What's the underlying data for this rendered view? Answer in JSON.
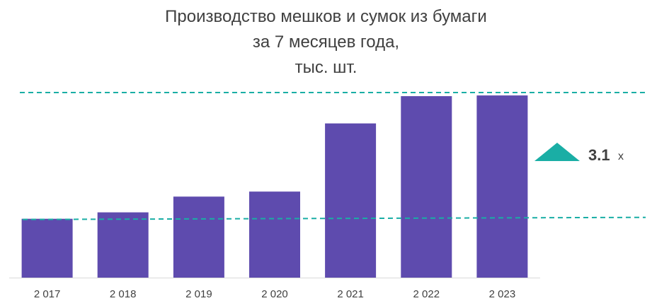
{
  "chart_data": {
    "type": "bar",
    "title_lines": [
      "Производство мешков и сумок из бумаги",
      "за 7 месяцев года,",
      "тыс. шт."
    ],
    "categories": [
      "2 017",
      "2 018",
      "2 019",
      "2 020",
      "2 021",
      "2 022",
      "2 023"
    ],
    "values": [
      82,
      91,
      113,
      120,
      215,
      253,
      254
    ],
    "ylim": [
      0,
      260
    ],
    "grid": false,
    "bar_color": "#5e4bae",
    "reference_lines": {
      "color": "#1aaea5",
      "style": "dashed",
      "low_value": 82,
      "high_value": 258
    },
    "annotation": {
      "value": "3.1",
      "unit": "x",
      "marker": "up-triangle-icon",
      "marker_color": "#1aaea5"
    }
  }
}
